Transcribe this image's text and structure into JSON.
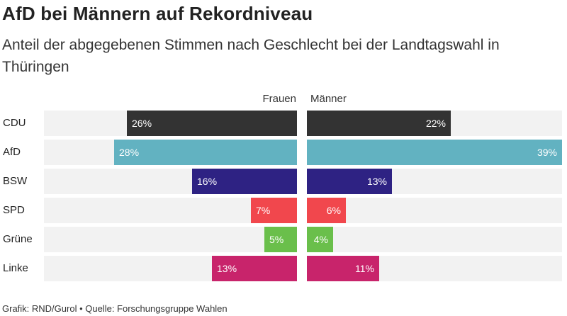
{
  "title": "AfD bei Männern auf Rekordniveau",
  "subtitle": "Anteil der abgegebenen Stimmen nach Geschlecht bei der Landtagswahl in Thüringen",
  "source": "Grafik: RND/Gurol • Quelle: Forschungsgruppe Wahlen",
  "chart_data": {
    "type": "bar",
    "orientation": "horizontal-butterfly",
    "categories": [
      "CDU",
      "AfD",
      "BSW",
      "SPD",
      "Grüne",
      "Linke"
    ],
    "series": [
      {
        "name": "Frauen",
        "values": [
          26,
          28,
          16,
          7,
          5,
          13
        ],
        "labels": [
          "26%",
          "28%",
          "16%",
          "7%",
          "5%",
          "13%"
        ]
      },
      {
        "name": "Männer",
        "values": [
          22,
          39,
          13,
          6,
          4,
          11
        ],
        "labels": [
          "22%",
          "39%",
          "13%",
          "6%",
          "4%",
          "11%"
        ]
      }
    ],
    "colors": [
      "#333333",
      "#62b2c1",
      "#2e2283",
      "#f1474d",
      "#6abf4b",
      "#c8246b"
    ],
    "xlim": [
      0,
      39
    ],
    "grid": false,
    "legend": "column-headers"
  }
}
